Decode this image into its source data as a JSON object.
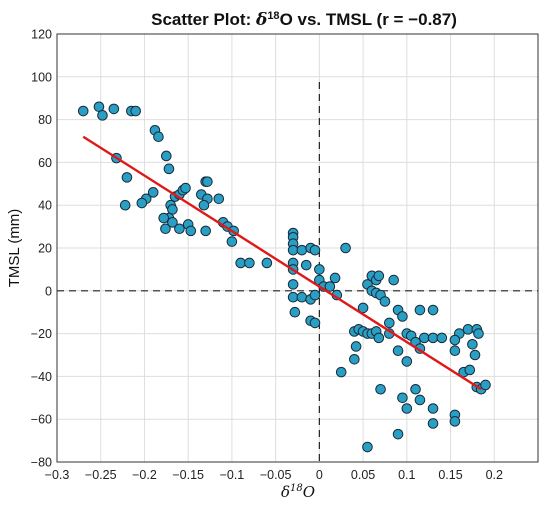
{
  "chart_data": {
    "type": "scatter",
    "title_prefix": "Scatter Plot: ",
    "title_delta": "δ",
    "title_sup": "18",
    "title_suffix": "O vs. TMSL (r = −0.87)",
    "xlabel_delta": "δ",
    "xlabel_sup": "18",
    "xlabel_rest": "O",
    "ylabel": "TMSL (mm)",
    "xlim": [
      -0.3,
      0.25
    ],
    "ylim": [
      -80,
      120
    ],
    "xticks": [
      -0.3,
      -0.25,
      -0.2,
      -0.15,
      -0.1,
      -0.05,
      0,
      0.05,
      0.1,
      0.15,
      0.2
    ],
    "xtick_labels": [
      "−0.3",
      "−0.25",
      "−0.2",
      "−0.15",
      "−0.1",
      "−0.05",
      "0",
      "0.05",
      "0.1",
      "0.15",
      "0.2"
    ],
    "yticks": [
      -80,
      -60,
      -40,
      -20,
      0,
      20,
      40,
      60,
      80,
      100,
      120
    ],
    "ytick_labels": [
      "−80",
      "−60",
      "−40",
      "−20",
      "0",
      "20",
      "40",
      "60",
      "80",
      "100",
      "120"
    ],
    "grid": true,
    "reference_lines": {
      "x": 0,
      "y": 0,
      "style": "dashed"
    },
    "marker_color": "#2a9fc4",
    "fit_line": {
      "color": "#e01818",
      "x": [
        -0.27,
        0.185
      ],
      "y": [
        72,
        -46
      ]
    },
    "points": [
      [
        -0.27,
        84
      ],
      [
        -0.252,
        86
      ],
      [
        -0.248,
        82
      ],
      [
        -0.235,
        85
      ],
      [
        -0.232,
        62
      ],
      [
        -0.215,
        84
      ],
      [
        -0.21,
        84
      ],
      [
        -0.22,
        53
      ],
      [
        -0.222,
        40
      ],
      [
        -0.188,
        75
      ],
      [
        -0.184,
        72
      ],
      [
        -0.175,
        63
      ],
      [
        -0.172,
        57
      ],
      [
        -0.198,
        43
      ],
      [
        -0.203,
        41
      ],
      [
        -0.19,
        46
      ],
      [
        -0.165,
        44
      ],
      [
        -0.16,
        45
      ],
      [
        -0.156,
        47
      ],
      [
        -0.153,
        48
      ],
      [
        -0.17,
        40
      ],
      [
        -0.168,
        38
      ],
      [
        -0.172,
        34
      ],
      [
        -0.178,
        34
      ],
      [
        -0.176,
        29
      ],
      [
        -0.168,
        32
      ],
      [
        -0.16,
        29
      ],
      [
        -0.15,
        31
      ],
      [
        -0.147,
        28
      ],
      [
        -0.135,
        45
      ],
      [
        -0.13,
        51
      ],
      [
        -0.128,
        51
      ],
      [
        -0.128,
        43
      ],
      [
        -0.132,
        40
      ],
      [
        -0.115,
        43
      ],
      [
        -0.11,
        32
      ],
      [
        -0.105,
        30
      ],
      [
        -0.13,
        28
      ],
      [
        -0.098,
        28
      ],
      [
        -0.1,
        23
      ],
      [
        -0.09,
        13
      ],
      [
        -0.08,
        13
      ],
      [
        -0.06,
        13
      ],
      [
        -0.03,
        27
      ],
      [
        -0.03,
        25
      ],
      [
        -0.03,
        22
      ],
      [
        -0.03,
        19
      ],
      [
        -0.02,
        19
      ],
      [
        -0.01,
        20
      ],
      [
        -0.005,
        19
      ],
      [
        -0.015,
        12
      ],
      [
        -0.03,
        13
      ],
      [
        -0.03,
        10
      ],
      [
        -0.03,
        3
      ],
      [
        -0.03,
        -3
      ],
      [
        -0.028,
        -10
      ],
      [
        -0.02,
        -3
      ],
      [
        -0.01,
        -4
      ],
      [
        -0.005,
        -2
      ],
      [
        -0.01,
        -14
      ],
      [
        -0.005,
        -15
      ],
      [
        0,
        10
      ],
      [
        0,
        5
      ],
      [
        0.005,
        2
      ],
      [
        0.012,
        2
      ],
      [
        0.02,
        -2
      ],
      [
        0.03,
        20
      ],
      [
        0.018,
        6
      ],
      [
        0.025,
        -38
      ],
      [
        0.04,
        -19
      ],
      [
        0.045,
        -18
      ],
      [
        0.05,
        -19
      ],
      [
        0.055,
        -20
      ],
      [
        0.05,
        -8
      ],
      [
        0.055,
        3
      ],
      [
        0.06,
        7
      ],
      [
        0.065,
        5
      ],
      [
        0.068,
        7
      ],
      [
        0.06,
        0
      ],
      [
        0.065,
        -1
      ],
      [
        0.07,
        -2
      ],
      [
        0.075,
        -5
      ],
      [
        0.06,
        -20
      ],
      [
        0.065,
        -19
      ],
      [
        0.068,
        -22
      ],
      [
        0.08,
        -20
      ],
      [
        0.085,
        5
      ],
      [
        0.09,
        -9
      ],
      [
        0.095,
        -12
      ],
      [
        0.1,
        -20
      ],
      [
        0.105,
        -21
      ],
      [
        0.11,
        -24
      ],
      [
        0.115,
        -27
      ],
      [
        0.1,
        -33
      ],
      [
        0.09,
        -28
      ],
      [
        0.04,
        -32
      ],
      [
        0.042,
        -26
      ],
      [
        0.08,
        -15
      ],
      [
        0.07,
        -46
      ],
      [
        0.11,
        -46
      ],
      [
        0.12,
        -22
      ],
      [
        0.13,
        -22
      ],
      [
        0.13,
        -9
      ],
      [
        0.115,
        -9
      ],
      [
        0.1,
        -55
      ],
      [
        0.09,
        -67
      ],
      [
        0.095,
        -50
      ],
      [
        0.115,
        -51
      ],
      [
        0.13,
        -55
      ],
      [
        0.13,
        -62
      ],
      [
        0.14,
        -22
      ],
      [
        0.155,
        -28
      ],
      [
        0.155,
        -58
      ],
      [
        0.155,
        -61
      ],
      [
        0.16,
        -20
      ],
      [
        0.155,
        -23
      ],
      [
        0.165,
        -38
      ],
      [
        0.17,
        -18
      ],
      [
        0.172,
        -37
      ],
      [
        0.175,
        -25
      ],
      [
        0.178,
        -30
      ],
      [
        0.18,
        -18
      ],
      [
        0.182,
        -20
      ],
      [
        0.18,
        -45
      ],
      [
        0.185,
        -46
      ],
      [
        0.19,
        -44
      ],
      [
        0.055,
        -73
      ]
    ]
  }
}
